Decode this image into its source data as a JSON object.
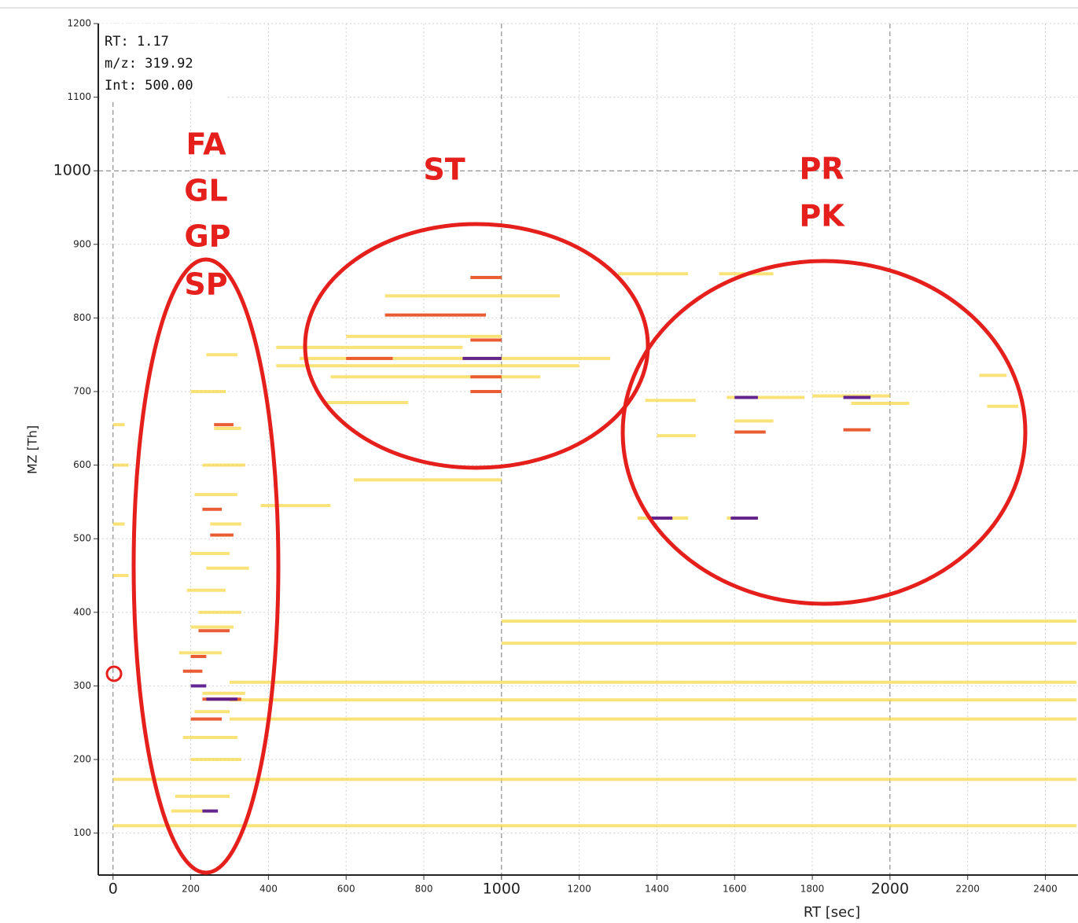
{
  "chart_data": {
    "type": "heatmap",
    "x_label": "RT [sec]",
    "y_label": "MZ [Th]",
    "xlim": [
      -38,
      2484
    ],
    "ylim": [
      43,
      1200
    ],
    "xticks": [
      0,
      200,
      400,
      600,
      800,
      1000,
      1200,
      1400,
      1600,
      1800,
      2000,
      2200,
      2400
    ],
    "yticks": [
      100,
      200,
      300,
      400,
      500,
      600,
      700,
      800,
      900,
      1000,
      1100,
      1200
    ],
    "grid": true,
    "info_box": [
      "RT: 1.17",
      "m/z: 319.92",
      "Int: 500.00"
    ],
    "annotations": [
      "FA",
      "GL",
      "GP",
      "SP",
      "ST",
      "PR",
      "PK"
    ],
    "series": [
      {
        "color": "#f7d84a",
        "x_start": [
          0,
          0,
          300,
          300,
          1000,
          1000,
          300,
          150,
          160,
          200,
          180,
          210,
          230,
          170,
          200,
          220,
          190,
          240,
          200,
          250,
          210,
          230,
          260,
          200,
          240,
          480,
          420,
          600,
          700,
          420,
          560,
          540,
          620,
          380,
          1370,
          1580,
          1800,
          1600,
          1400,
          1900,
          2250,
          2230,
          1350,
          1580,
          1300,
          1560,
          0,
          0,
          0,
          0
        ],
        "x_end": [
          2480,
          2480,
          2480,
          2480,
          2480,
          2480,
          2480,
          260,
          300,
          330,
          320,
          300,
          340,
          280,
          310,
          330,
          290,
          350,
          300,
          330,
          320,
          340,
          330,
          290,
          320,
          1280,
          1200,
          1000,
          1150,
          900,
          1100,
          760,
          1000,
          560,
          1500,
          1780,
          2000,
          1700,
          1500,
          2050,
          2330,
          2300,
          1480,
          1660,
          1480,
          1700,
          40,
          30,
          40,
          30
        ],
        "y": [
          110,
          173,
          281,
          255,
          388,
          358,
          305,
          130,
          150,
          200,
          230,
          265,
          290,
          345,
          380,
          400,
          430,
          460,
          480,
          520,
          560,
          600,
          650,
          700,
          750,
          745,
          735,
          775,
          830,
          760,
          720,
          685,
          580,
          545,
          688,
          692,
          694,
          660,
          640,
          684,
          680,
          722,
          528,
          528,
          860,
          860,
          450,
          520,
          600,
          655
        ]
      },
      {
        "color": "#e8542a",
        "x_start": [
          700,
          600,
          920,
          920,
          920,
          920,
          1600,
          1880,
          230,
          200,
          180,
          200,
          220,
          250,
          230,
          260
        ],
        "x_end": [
          960,
          720,
          1000,
          1000,
          1000,
          1000,
          1680,
          1950,
          330,
          280,
          230,
          240,
          300,
          310,
          280,
          310
        ],
        "y": [
          804,
          745,
          770,
          720,
          700,
          855,
          645,
          648,
          282,
          255,
          320,
          340,
          375,
          505,
          540,
          655
        ]
      },
      {
        "color": "#5b1a8c",
        "x_start": [
          900,
          1600,
          1880,
          1380,
          1590,
          240,
          200,
          230
        ],
        "x_end": [
          1000,
          1660,
          1950,
          1440,
          1660,
          320,
          240,
          270
        ],
        "y": [
          745,
          692,
          692,
          528,
          528,
          282,
          300,
          130
        ]
      }
    ]
  }
}
